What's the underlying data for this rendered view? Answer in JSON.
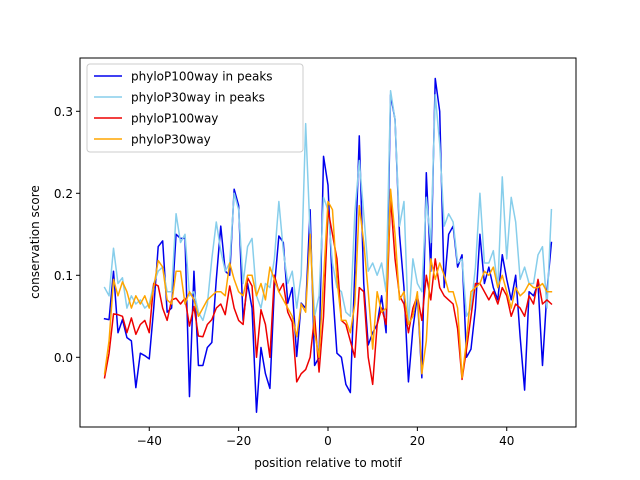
{
  "chart_data": {
    "type": "line",
    "title": "",
    "xlabel": "position relative to motif",
    "ylabel": "conservation score",
    "xlim": [
      -55.5,
      55.5
    ],
    "ylim": [
      -0.085,
      0.365
    ],
    "xticks": [
      -40,
      -20,
      0,
      20,
      40
    ],
    "yticks": [
      0.0,
      0.1,
      0.2,
      0.3
    ],
    "xtick_labels": [
      "−40",
      "−20",
      "0",
      "20",
      "40"
    ],
    "ytick_labels": [
      "0.0",
      "0.1",
      "0.2",
      "0.3"
    ],
    "grid": false,
    "legend_position": "upper left",
    "x": [
      -50,
      -49,
      -48,
      -47,
      -46,
      -45,
      -44,
      -43,
      -42,
      -41,
      -40,
      -39,
      -38,
      -37,
      -36,
      -35,
      -34,
      -33,
      -32,
      -31,
      -30,
      -29,
      -28,
      -27,
      -26,
      -25,
      -24,
      -23,
      -22,
      -21,
      -20,
      -19,
      -18,
      -17,
      -16,
      -15,
      -14,
      -13,
      -12,
      -11,
      -10,
      -9,
      -8,
      -7,
      -6,
      -5,
      -4,
      -3,
      -2,
      -1,
      0,
      1,
      2,
      3,
      4,
      5,
      6,
      7,
      8,
      9,
      10,
      11,
      12,
      13,
      14,
      15,
      16,
      17,
      18,
      19,
      20,
      21,
      22,
      23,
      24,
      25,
      26,
      27,
      28,
      29,
      30,
      31,
      32,
      33,
      34,
      35,
      36,
      37,
      38,
      39,
      40,
      41,
      42,
      43,
      44,
      45,
      46,
      47,
      48,
      49,
      50
    ],
    "series": [
      {
        "name": "phyloP100way in peaks",
        "color": "#0000ee",
        "values": [
          0.047,
          0.046,
          0.105,
          0.03,
          0.046,
          0.024,
          0.02,
          -0.037,
          0.005,
          0.002,
          -0.002,
          0.06,
          0.135,
          0.142,
          0.055,
          0.06,
          0.15,
          0.145,
          0.145,
          -0.048,
          0.105,
          -0.01,
          -0.01,
          0.012,
          0.018,
          0.095,
          0.16,
          0.105,
          0.1,
          0.205,
          0.185,
          0.045,
          0.09,
          0.06,
          -0.067,
          0.012,
          -0.02,
          -0.038,
          0.085,
          0.148,
          0.14,
          0.066,
          0.085,
          0.001,
          0.066,
          0.06,
          0.18,
          -0.01,
          0.0,
          0.245,
          0.21,
          0.085,
          0.005,
          0.0,
          -0.033,
          -0.043,
          0.105,
          0.27,
          0.09,
          0.015,
          0.03,
          0.04,
          0.075,
          0.03,
          0.32,
          0.29,
          0.15,
          0.085,
          -0.03,
          0.035,
          0.075,
          -0.025,
          0.225,
          0.105,
          0.34,
          0.3,
          0.085,
          0.15,
          0.16,
          0.11,
          0.125,
          0.0,
          0.01,
          0.06,
          0.15,
          0.09,
          0.11,
          0.085,
          0.07,
          0.125,
          0.095,
          0.07,
          0.1,
          0.025,
          -0.04,
          0.08,
          0.075,
          0.09,
          -0.01,
          0.08,
          0.14
        ]
      },
      {
        "name": "phyloP30way in peaks",
        "color": "#87ceeb",
        "values": [
          0.085,
          0.075,
          0.133,
          0.09,
          0.097,
          0.06,
          0.075,
          0.065,
          0.07,
          0.06,
          0.065,
          0.09,
          0.105,
          0.11,
          0.08,
          0.08,
          0.175,
          0.14,
          0.15,
          0.075,
          0.08,
          0.055,
          0.045,
          0.065,
          0.12,
          0.165,
          0.13,
          0.105,
          0.115,
          0.2,
          0.18,
          0.09,
          0.135,
          0.145,
          0.075,
          0.06,
          0.09,
          0.085,
          0.12,
          0.19,
          0.13,
          0.09,
          0.105,
          0.06,
          0.1,
          0.285,
          0.15,
          0.05,
          0.075,
          0.195,
          0.18,
          0.115,
          0.085,
          0.08,
          0.055,
          0.05,
          0.175,
          0.24,
          0.175,
          0.105,
          0.115,
          0.1,
          0.115,
          0.08,
          0.325,
          0.29,
          0.16,
          0.19,
          0.04,
          0.12,
          0.09,
          0.08,
          0.195,
          0.14,
          0.32,
          0.26,
          0.16,
          0.175,
          0.165,
          0.115,
          0.12,
          0.05,
          0.06,
          0.11,
          0.2,
          0.115,
          0.115,
          0.13,
          0.085,
          0.22,
          0.12,
          0.195,
          0.165,
          0.095,
          0.11,
          0.09,
          0.09,
          0.125,
          0.135,
          0.06,
          0.18
        ]
      },
      {
        "name": "phyloP100way",
        "color": "#ee0000",
        "values": [
          -0.025,
          0.005,
          0.053,
          0.052,
          0.05,
          0.03,
          0.048,
          0.028,
          0.04,
          0.045,
          0.03,
          0.09,
          0.087,
          0.06,
          0.045,
          0.07,
          0.072,
          0.065,
          0.072,
          0.038,
          0.062,
          0.026,
          0.025,
          0.04,
          0.046,
          0.06,
          0.065,
          0.052,
          0.087,
          0.06,
          0.045,
          0.04,
          0.097,
          0.087,
          0.0,
          0.058,
          0.04,
          0.0,
          0.1,
          0.08,
          0.09,
          0.055,
          0.043,
          -0.03,
          -0.02,
          -0.015,
          0.0,
          0.05,
          -0.018,
          0.05,
          0.18,
          0.15,
          0.12,
          0.045,
          0.04,
          0.02,
          0.0,
          0.085,
          0.08,
          0.0,
          -0.033,
          0.04,
          0.06,
          0.04,
          0.195,
          0.12,
          0.075,
          0.065,
          0.03,
          0.06,
          0.075,
          0.045,
          0.1,
          0.07,
          0.12,
          0.085,
          0.075,
          0.07,
          0.065,
          0.035,
          -0.027,
          0.01,
          0.05,
          0.09,
          0.09,
          0.08,
          0.07,
          0.08,
          0.065,
          0.085,
          0.075,
          0.05,
          0.065,
          0.06,
          0.05,
          0.075,
          0.065,
          0.095,
          0.065,
          0.07,
          0.065
        ]
      },
      {
        "name": "phyloP30way",
        "color": "#ffa500",
        "values": [
          -0.02,
          0.02,
          0.095,
          0.075,
          0.092,
          0.08,
          0.06,
          0.075,
          0.065,
          0.075,
          0.06,
          0.085,
          0.118,
          0.11,
          0.07,
          0.065,
          0.105,
          0.105,
          0.065,
          0.08,
          0.07,
          0.05,
          0.06,
          0.07,
          0.075,
          0.08,
          0.08,
          0.075,
          0.115,
          0.095,
          0.08,
          0.075,
          0.1,
          0.1,
          0.075,
          0.09,
          0.07,
          0.11,
          0.095,
          0.08,
          0.07,
          0.06,
          0.05,
          0.025,
          0.065,
          0.055,
          0.15,
          0.03,
          0.0,
          0.095,
          0.19,
          0.18,
          0.095,
          0.045,
          0.045,
          0.03,
          0.065,
          0.185,
          0.14,
          0.08,
          0.01,
          0.08,
          0.055,
          0.06,
          0.205,
          0.15,
          0.07,
          0.08,
          0.04,
          0.05,
          0.08,
          -0.02,
          0.02,
          0.12,
          0.095,
          0.115,
          0.1,
          0.08,
          0.08,
          0.06,
          -0.025,
          0.02,
          0.08,
          0.085,
          0.09,
          0.105,
          0.1,
          0.11,
          0.085,
          0.1,
          0.08,
          0.06,
          0.085,
          0.075,
          0.08,
          0.09,
          0.085,
          0.085,
          0.09,
          0.08,
          0.08
        ]
      }
    ]
  }
}
